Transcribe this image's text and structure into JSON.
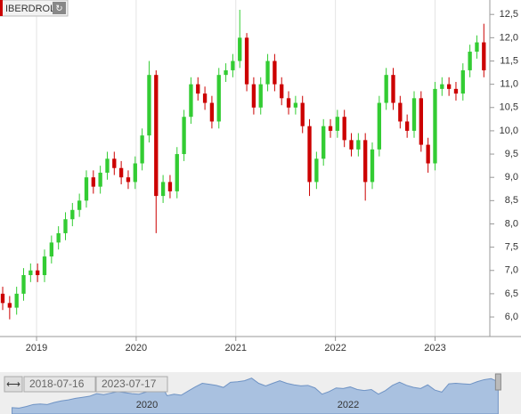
{
  "chart_data": {
    "type": "candlestick",
    "title": "IBERDROL",
    "x": [
      2018.66,
      2018.73,
      2018.8,
      2018.87,
      2018.94,
      2019.01,
      2019.08,
      2019.15,
      2019.22,
      2019.29,
      2019.36,
      2019.43,
      2019.5,
      2019.57,
      2019.64,
      2019.71,
      2019.78,
      2019.85,
      2019.92,
      2019.99,
      2020.06,
      2020.13,
      2020.2,
      2020.27,
      2020.34,
      2020.41,
      2020.48,
      2020.55,
      2020.62,
      2020.69,
      2020.76,
      2020.83,
      2020.9,
      2020.97,
      2021.04,
      2021.11,
      2021.18,
      2021.25,
      2021.32,
      2021.39,
      2021.46,
      2021.53,
      2021.6,
      2021.67,
      2021.74,
      2021.81,
      2021.88,
      2021.95,
      2022.02,
      2022.09,
      2022.16,
      2022.23,
      2022.3,
      2022.37,
      2022.44,
      2022.51,
      2022.58,
      2022.65,
      2022.72,
      2022.79,
      2022.86,
      2022.93,
      2023.0,
      2023.07,
      2023.14,
      2023.21,
      2023.28,
      2023.35,
      2023.42,
      2023.49
    ],
    "open": [
      6.5,
      6.3,
      6.2,
      6.5,
      6.9,
      7.0,
      6.9,
      7.3,
      7.6,
      7.8,
      8.1,
      8.3,
      8.5,
      9.0,
      8.8,
      9.1,
      9.4,
      9.2,
      9.0,
      8.9,
      9.3,
      9.9,
      11.2,
      8.6,
      8.9,
      8.7,
      9.5,
      10.3,
      11.0,
      10.8,
      10.6,
      10.2,
      11.2,
      11.3,
      11.5,
      12.0,
      11.0,
      10.5,
      11.0,
      11.5,
      11.0,
      10.7,
      10.5,
      10.6,
      10.1,
      8.9,
      9.4,
      10.1,
      10.0,
      10.3,
      9.8,
      9.6,
      9.8,
      8.9,
      9.6,
      10.6,
      11.2,
      10.6,
      10.2,
      10.0,
      10.7,
      9.7,
      9.3,
      10.9,
      11.0,
      10.9,
      10.8,
      11.3,
      11.7,
      11.9
    ],
    "high": [
      6.65,
      6.45,
      6.65,
      7.05,
      7.15,
      7.15,
      7.45,
      7.75,
      7.95,
      8.25,
      8.45,
      8.65,
      9.15,
      9.15,
      9.25,
      9.55,
      9.55,
      9.35,
      9.15,
      9.45,
      10.05,
      11.5,
      11.3,
      9.05,
      9.05,
      9.65,
      10.45,
      11.15,
      11.15,
      10.95,
      10.75,
      11.35,
      11.45,
      11.65,
      12.6,
      12.1,
      11.15,
      11.15,
      11.65,
      11.65,
      11.15,
      10.85,
      10.75,
      10.75,
      10.25,
      9.55,
      10.25,
      10.25,
      10.45,
      10.45,
      9.95,
      9.95,
      9.95,
      9.75,
      10.75,
      11.35,
      11.35,
      10.75,
      10.35,
      10.85,
      10.85,
      9.85,
      11.05,
      11.15,
      11.15,
      11.05,
      11.45,
      11.85,
      12.05,
      12.3
    ],
    "low": [
      6.15,
      5.95,
      6.05,
      6.35,
      6.75,
      6.75,
      6.75,
      7.15,
      7.45,
      7.65,
      7.95,
      8.15,
      8.35,
      8.65,
      8.65,
      8.95,
      9.05,
      8.85,
      8.75,
      8.75,
      9.15,
      9.75,
      7.8,
      8.45,
      8.55,
      8.55,
      9.35,
      10.15,
      10.65,
      10.45,
      10.05,
      10.05,
      11.05,
      11.15,
      11.35,
      10.85,
      10.35,
      10.35,
      10.85,
      10.85,
      10.55,
      10.35,
      10.35,
      9.95,
      8.6,
      8.75,
      9.25,
      9.85,
      9.85,
      9.65,
      9.45,
      9.45,
      8.5,
      8.75,
      9.45,
      10.45,
      10.45,
      10.05,
      9.85,
      9.85,
      9.55,
      9.1,
      9.15,
      10.75,
      10.75,
      10.65,
      10.65,
      11.15,
      11.55,
      11.15
    ],
    "close": [
      6.3,
      6.2,
      6.5,
      6.9,
      7.0,
      6.9,
      7.3,
      7.6,
      7.8,
      8.1,
      8.3,
      8.5,
      9.0,
      8.8,
      9.1,
      9.4,
      9.2,
      9.0,
      8.9,
      9.3,
      9.9,
      11.2,
      8.6,
      8.9,
      8.7,
      9.5,
      10.3,
      11.0,
      10.8,
      10.6,
      10.2,
      11.2,
      11.3,
      11.5,
      12.0,
      11.0,
      10.5,
      11.0,
      11.5,
      11.0,
      10.7,
      10.5,
      10.6,
      10.1,
      8.9,
      9.4,
      10.1,
      10.0,
      10.3,
      9.8,
      9.6,
      9.8,
      8.9,
      9.6,
      10.6,
      11.2,
      10.6,
      10.2,
      10.0,
      10.7,
      9.7,
      9.3,
      10.9,
      11.0,
      10.9,
      10.8,
      11.3,
      11.7,
      11.9,
      11.3
    ],
    "up_color": "#33cc33",
    "down_color": "#cc0000",
    "xlim": [
      2018.633,
      2023.55
    ],
    "xticks": [
      2019,
      2020,
      2021,
      2022,
      2023
    ],
    "ylim": [
      5.58,
      12.81
    ],
    "yticks": [
      {
        "value": 6.0,
        "label": "6,0"
      },
      {
        "value": 6.5,
        "label": "6,5"
      },
      {
        "value": 7.0,
        "label": "7,0"
      },
      {
        "value": 7.5,
        "label": "7,5"
      },
      {
        "value": 8.0,
        "label": "8,0"
      },
      {
        "value": 8.5,
        "label": "8,5"
      },
      {
        "value": 9.0,
        "label": "9,0"
      },
      {
        "value": 9.5,
        "label": "9,5"
      },
      {
        "value": 10.0,
        "label": "10,0"
      },
      {
        "value": 10.5,
        "label": "10,5"
      },
      {
        "value": 11.0,
        "label": "11,0"
      },
      {
        "value": 11.5,
        "label": "11,5"
      },
      {
        "value": 12.0,
        "label": "12,0"
      },
      {
        "value": 12.5,
        "label": "12,5"
      }
    ],
    "grid": true
  },
  "navigator": {
    "start": "2018-07-16",
    "end": "2023-07-17",
    "xticks": [
      2020,
      2022
    ]
  }
}
